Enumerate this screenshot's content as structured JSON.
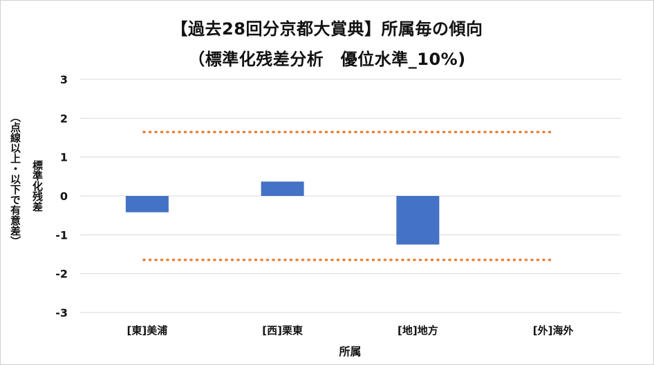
{
  "chart_data": {
    "type": "bar",
    "title": [
      "【過去28回分京都大賞典】所属毎の傾向",
      "（標準化残差分析　優位水準_10%)"
    ],
    "xlabel": "所属",
    "ylabel": [
      "標準化残差",
      "（点線以上・以下で有意差）"
    ],
    "categories": [
      "[東]美浦",
      "[西]栗東",
      "[地]地方",
      "[外]海外"
    ],
    "values": [
      -0.42,
      0.37,
      -1.25,
      0
    ],
    "ylim": [
      -3,
      3
    ],
    "yticks": [
      "3",
      "2",
      "1",
      "0",
      "-1",
      "-2",
      "-3"
    ],
    "threshold_lines": [
      1.645,
      -1.645
    ],
    "grid": true,
    "legend": "none",
    "colors": {
      "bar": "#4472c4",
      "threshold": "#ed7d31",
      "grid": "#d9d9d9",
      "text": "#111111"
    }
  }
}
